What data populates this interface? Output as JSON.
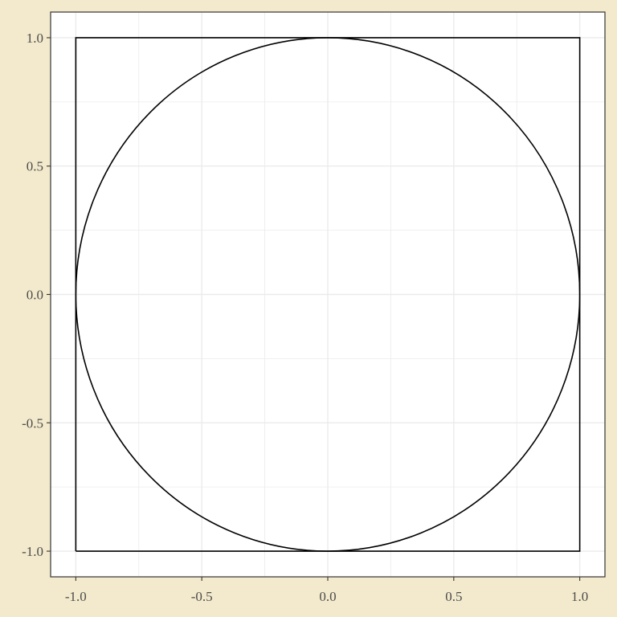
{
  "chart_data": {
    "type": "line",
    "title": "",
    "xlabel": "",
    "ylabel": "",
    "xlim": [
      -1.1,
      1.1
    ],
    "ylim": [
      -1.1,
      1.1
    ],
    "grid": true,
    "legend": "none",
    "x_ticks": [
      -1.0,
      -0.5,
      0.0,
      0.5,
      1.0
    ],
    "y_ticks": [
      -1.0,
      -0.5,
      0.0,
      0.5,
      1.0
    ],
    "x_tick_labels": [
      "-1.0",
      "-0.5",
      "0.0",
      "0.5",
      "1.0"
    ],
    "y_tick_labels": [
      "-1.0",
      "-0.5",
      "0.0",
      "0.5",
      "1.0"
    ],
    "series": [
      {
        "shape": "square",
        "x": [
          -1,
          1,
          1,
          -1,
          -1
        ],
        "y": [
          -1,
          -1,
          1,
          1,
          -1
        ]
      },
      {
        "shape": "circle",
        "center": [
          0,
          0
        ],
        "radius": 1
      }
    ],
    "colors": {
      "page_background": "#f3e9cc",
      "panel_background": "#ffffff",
      "grid": "#ebebeb",
      "series": "#000000",
      "axis_text": "#4d4d4d",
      "tick": "#333333"
    }
  }
}
